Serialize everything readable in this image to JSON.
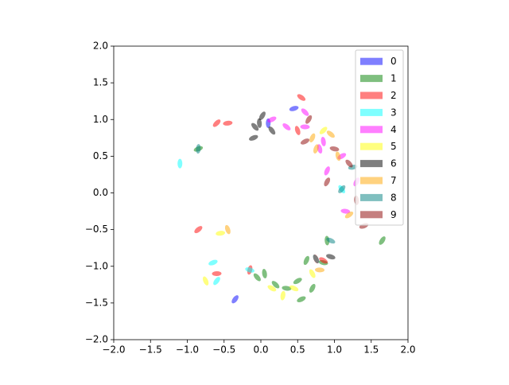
{
  "chart_data": {
    "type": "scatter",
    "xlim": [
      -2,
      2
    ],
    "ylim": [
      -2,
      2
    ],
    "xticks": [
      {
        "value": -2,
        "label": "−2.0"
      },
      {
        "value": -1.5,
        "label": "−1.5"
      },
      {
        "value": -1,
        "label": "−1.0"
      },
      {
        "value": -0.5,
        "label": "−0.5"
      },
      {
        "value": 0,
        "label": "0.0"
      },
      {
        "value": 0.5,
        "label": "0.5"
      },
      {
        "value": 1,
        "label": "1.0"
      },
      {
        "value": 1.5,
        "label": "1.5"
      },
      {
        "value": 2,
        "label": "2.0"
      }
    ],
    "yticks": [
      {
        "value": -2,
        "label": "−2.0"
      },
      {
        "value": -1.5,
        "label": "−1.5"
      },
      {
        "value": -1,
        "label": "−1.0"
      },
      {
        "value": -0.5,
        "label": "−0.5"
      },
      {
        "value": 0,
        "label": "0.0"
      },
      {
        "value": 0.5,
        "label": "0.5"
      },
      {
        "value": 1,
        "label": "1.0"
      },
      {
        "value": 1.5,
        "label": "1.5"
      },
      {
        "value": 2,
        "label": "2.0"
      }
    ],
    "legend": "upper right",
    "series": [
      {
        "name": "0",
        "color": "#0000ff",
        "x": [
          0.1,
          -0.35,
          0.45
        ],
        "values": [
          0.95,
          -1.45,
          1.15
        ]
      },
      {
        "name": "1",
        "color": "#008000",
        "x": [
          0.62,
          0.5,
          0.35,
          0.2,
          0.05,
          0.7,
          0.55,
          0.85,
          -0.05,
          0.9,
          1.65,
          -0.85
        ],
        "values": [
          -0.92,
          -1.2,
          -1.3,
          -1.25,
          -1.1,
          -1.3,
          -1.45,
          -0.95,
          -1.15,
          -0.65,
          -0.65,
          0.6
        ]
      },
      {
        "name": "2",
        "color": "#ff0000",
        "x": [
          -0.6,
          -0.45,
          0.85,
          0.75,
          -0.15,
          -0.85,
          -0.6,
          0.55,
          0.5
        ],
        "values": [
          0.95,
          0.95,
          -0.92,
          -0.9,
          -1.05,
          -0.5,
          -1.1,
          1.3,
          0.85
        ]
      },
      {
        "name": "3",
        "color": "#00ffff",
        "x": [
          -0.65,
          -0.15,
          1.1,
          -1.1,
          -0.6
        ],
        "values": [
          -0.95,
          -1.05,
          0.05,
          0.4,
          -1.2
        ]
      },
      {
        "name": "4",
        "color": "#ff00ff",
        "x": [
          0.6,
          0.35,
          0.8,
          0.9,
          1.1,
          1.15,
          0.6,
          0.85,
          1.3,
          0.15
        ],
        "values": [
          0.9,
          0.9,
          0.6,
          0.3,
          0.5,
          -0.25,
          1.1,
          0.7,
          0.15,
          1.0
        ]
      },
      {
        "name": "5",
        "color": "#ffff00",
        "x": [
          0.45,
          0.7,
          0.3,
          0.85,
          -0.55,
          0.15,
          -0.75
        ],
        "values": [
          -1.3,
          -1.1,
          -1.4,
          0.85,
          -0.55,
          -1.3,
          -1.2
        ]
      },
      {
        "name": "6",
        "color": "#000000",
        "x": [
          -0.08,
          -0.02,
          0.02,
          -0.1,
          0.95,
          0.15
        ],
        "values": [
          0.9,
          0.95,
          1.05,
          0.75,
          -0.87,
          0.85
        ]
      },
      {
        "name": "7",
        "color": "#ffa500",
        "x": [
          -0.45,
          0.75,
          1.2,
          0.8,
          0.95,
          1.05,
          0.7
        ],
        "values": [
          -0.5,
          0.6,
          -0.3,
          -1.05,
          0.8,
          0.5,
          0.75
        ]
      },
      {
        "name": "8",
        "color": "#008080",
        "x": [
          -0.85,
          1.1,
          1.25,
          0.95,
          0.75
        ],
        "values": [
          0.6,
          0.05,
          0.35,
          -0.65,
          -0.9
        ]
      },
      {
        "name": "9",
        "color": "#8b0000",
        "x": [
          0.9,
          0.6,
          1.0,
          1.2,
          1.3,
          0.65,
          1.4
        ],
        "values": [
          0.15,
          0.7,
          0.6,
          0.4,
          -0.1,
          1.0,
          -0.45
        ]
      }
    ]
  }
}
